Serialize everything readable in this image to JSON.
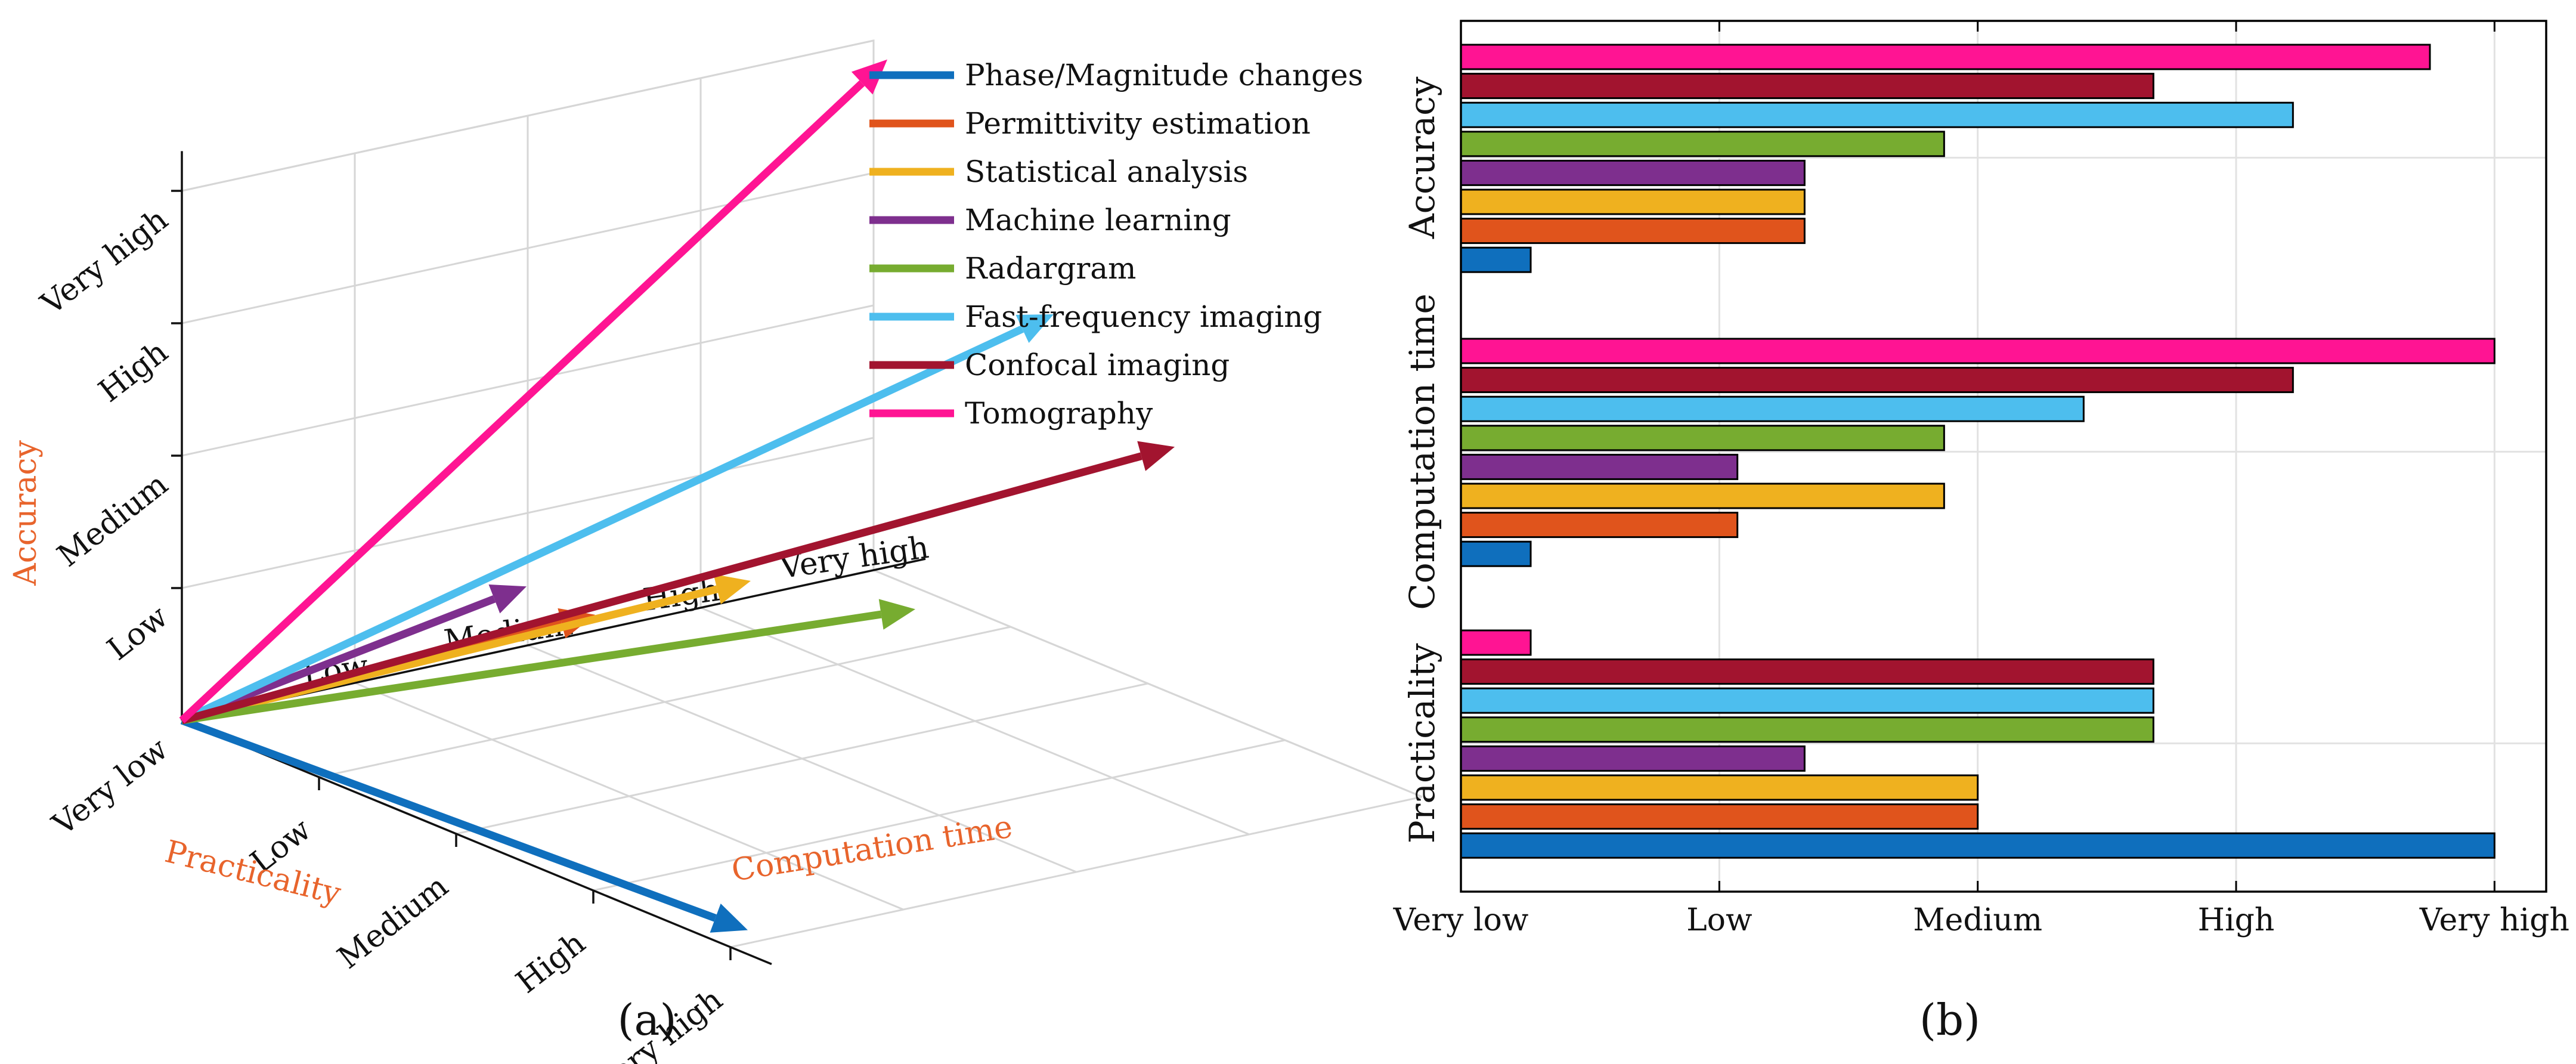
{
  "chart_data": [
    {
      "type": "line",
      "subtype": "3d-vectors",
      "panel_label": "(a)",
      "xlabel": "Practicality",
      "ylabel": "Computation time",
      "zlabel": "Accuracy",
      "levels": [
        "Very low",
        "Low",
        "Medium",
        "High",
        "Very high"
      ],
      "x_ticks": [
        "Very low",
        "Low",
        "Medium",
        "High",
        "Very high"
      ],
      "y_ticks": [
        "Low",
        "Medium",
        "High",
        "Very high"
      ],
      "z_ticks": [
        "Very low",
        "Low",
        "Medium",
        "High",
        "Very high"
      ],
      "legend_placement": "top-right",
      "series": [
        {
          "name": "Phase/Magnitude changes",
          "color": "#0f6fbd",
          "practicality": 4,
          "computation_time": 0.1,
          "accuracy": 0.1
        },
        {
          "name": "Permittivity estimation",
          "color": "#e0541c",
          "practicality": 1.5,
          "computation_time": 1.2,
          "accuracy": 1.1
        },
        {
          "name": "Statistical analysis",
          "color": "#efb11f",
          "practicality": 1.5,
          "computation_time": 2.1,
          "accuracy": 1.1
        },
        {
          "name": "Machine learning",
          "color": "#7e2f8e",
          "practicality": 1,
          "computation_time": 1.2,
          "accuracy": 1.1
        },
        {
          "name": "Radargram",
          "color": "#77ac30",
          "practicality": 2.7,
          "computation_time": 2.1,
          "accuracy": 1.4
        },
        {
          "name": "Fast-frequency imaging",
          "color": "#4dbeee",
          "practicality": 2.7,
          "computation_time": 2.9,
          "accuracy": 3.4
        },
        {
          "name": "Confocal imaging",
          "color": "#a2142f",
          "practicality": 2.7,
          "computation_time": 3.6,
          "accuracy": 2.2
        },
        {
          "name": "Tomography",
          "color": "#ff1493",
          "practicality": 0.1,
          "computation_time": 4,
          "accuracy": 3.9
        }
      ]
    },
    {
      "type": "bar",
      "orientation": "horizontal",
      "panel_label": "(b)",
      "x_ticks": [
        "Very low",
        "Low",
        "Medium",
        "High",
        "Very high"
      ],
      "xlim": [
        0,
        4.2
      ],
      "grid": true,
      "groups": [
        {
          "label": "Accuracy",
          "values": [
            {
              "name": "Tomography",
              "value": 3.75
            },
            {
              "name": "Confocal imaging",
              "value": 2.68
            },
            {
              "name": "Fast-frequency imaging",
              "value": 3.22
            },
            {
              "name": "Radargram",
              "value": 1.87
            },
            {
              "name": "Machine learning",
              "value": 1.33
            },
            {
              "name": "Statistical analysis",
              "value": 1.33
            },
            {
              "name": "Permittivity estimation",
              "value": 1.33
            },
            {
              "name": "Phase/Magnitude changes",
              "value": 0.27
            }
          ]
        },
        {
          "label": "Computation time",
          "values": [
            {
              "name": "Tomography",
              "value": 4.0
            },
            {
              "name": "Confocal imaging",
              "value": 3.22
            },
            {
              "name": "Fast-frequency imaging",
              "value": 2.41
            },
            {
              "name": "Radargram",
              "value": 1.87
            },
            {
              "name": "Machine learning",
              "value": 1.07
            },
            {
              "name": "Statistical analysis",
              "value": 1.87
            },
            {
              "name": "Permittivity estimation",
              "value": 1.07
            },
            {
              "name": "Phase/Magnitude changes",
              "value": 0.27
            }
          ]
        },
        {
          "label": "Practicality",
          "values": [
            {
              "name": "Tomography",
              "value": 0.27
            },
            {
              "name": "Confocal imaging",
              "value": 2.68
            },
            {
              "name": "Fast-frequency imaging",
              "value": 2.68
            },
            {
              "name": "Radargram",
              "value": 2.68
            },
            {
              "name": "Machine learning",
              "value": 1.33
            },
            {
              "name": "Statistical analysis",
              "value": 2.0
            },
            {
              "name": "Permittivity estimation",
              "value": 2.0
            },
            {
              "name": "Phase/Magnitude changes",
              "value": 4.0
            }
          ]
        }
      ]
    }
  ]
}
